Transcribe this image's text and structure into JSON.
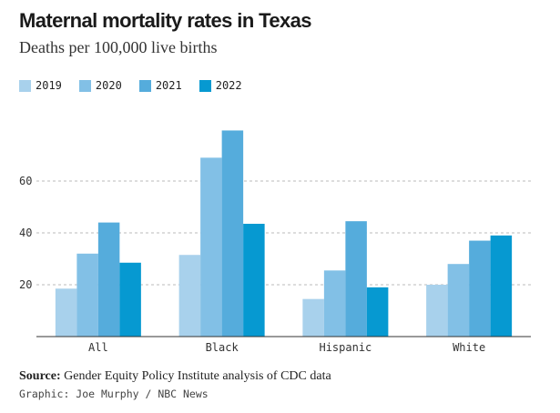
{
  "chart_data": {
    "type": "bar",
    "title": "Maternal mortality rates in Texas",
    "subtitle": "Deaths per 100,000 live births",
    "categories": [
      "All",
      "Black",
      "Hispanic",
      "White"
    ],
    "series": [
      {
        "name": "2019",
        "color": "#a8d1ec",
        "values": [
          18.5,
          31.5,
          14.5,
          20
        ]
      },
      {
        "name": "2020",
        "color": "#82c0e6",
        "values": [
          32,
          69,
          25.5,
          28
        ]
      },
      {
        "name": "2021",
        "color": "#55acdc",
        "values": [
          44,
          79.5,
          44.5,
          37
        ]
      },
      {
        "name": "2022",
        "color": "#0699d1",
        "values": [
          28.5,
          43.5,
          19,
          39
        ]
      }
    ],
    "yticks": [
      20,
      40,
      60
    ],
    "ylim": [
      0,
      80
    ],
    "grid": true,
    "legend": "top-left",
    "source_label": "Source:",
    "source_text": "Gender Equity Policy Institute analysis of CDC data",
    "credit": "Graphic: Joe Murphy / NBC News"
  }
}
